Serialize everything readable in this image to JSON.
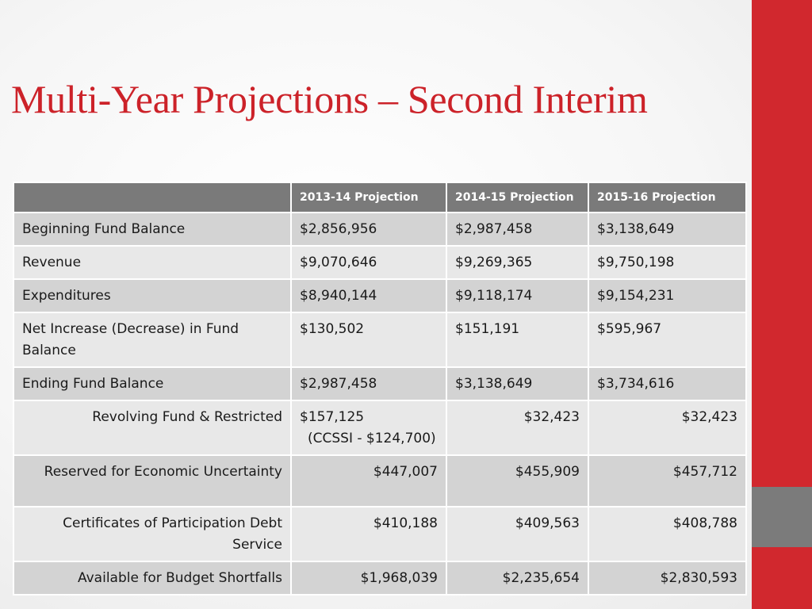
{
  "slide": {
    "title": "Multi-Year Projections – Second Interim",
    "colors": {
      "title": "#cc2229",
      "accent_red": "#d1282e",
      "accent_gray": "#7b7b7b",
      "header_bg": "#7a7a7a"
    }
  },
  "table": {
    "headers": [
      "",
      "2013-14 Projection",
      "2014-15 Projection",
      "2015-16 Projection"
    ],
    "rows": [
      {
        "label": "Beginning Fund Balance",
        "values": [
          "$2,856,956",
          "$2,987,458",
          "$3,138,649"
        ]
      },
      {
        "label": "Revenue",
        "values": [
          "$9,070,646",
          "$9,269,365",
          "$9,750,198"
        ]
      },
      {
        "label": "Expenditures",
        "values": [
          "$8,940,144",
          "$9,118,174",
          "$9,154,231"
        ]
      },
      {
        "label": "Net Increase (Decrease) in Fund Balance",
        "values": [
          "$130,502",
          "$151,191",
          "$595,967"
        ]
      },
      {
        "label": "Ending Fund Balance",
        "values": [
          "$2,987,458",
          "$3,138,649",
          "$3,734,616"
        ]
      },
      {
        "label": "Revolving Fund & Restricted",
        "values": [
          "$157,125",
          "$32,423",
          "$32,423"
        ],
        "note": "(CCSSI - $124,700)"
      },
      {
        "label": "Reserved for Economic Uncertainty",
        "values": [
          "$447,007",
          "$455,909",
          "$457,712"
        ]
      },
      {
        "label": "Certificates of Participation Debt Service",
        "values": [
          "$410,188",
          "$409,563",
          "$408,788"
        ]
      },
      {
        "label": "Available for Budget Shortfalls",
        "values": [
          "$1,968,039",
          "$2,235,654",
          "$2,830,593"
        ]
      }
    ]
  }
}
